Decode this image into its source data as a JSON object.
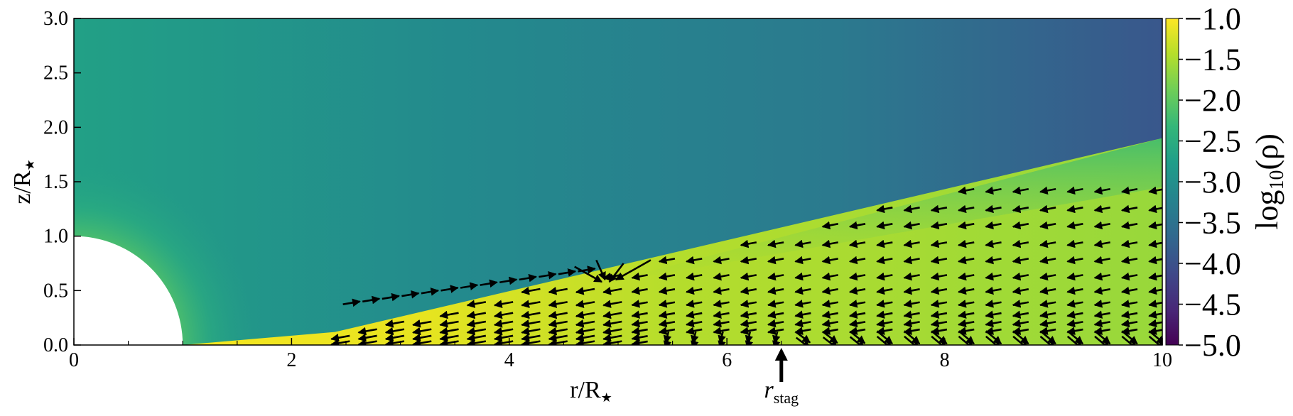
{
  "chart_data": {
    "type": "heatmap",
    "title": "",
    "xlabel": "r/R",
    "xlabel_sub": "★",
    "ylabel": "z/R",
    "ylabel_sub": "★",
    "xlim": [
      0,
      10
    ],
    "ylim": [
      0,
      3.0
    ],
    "x_ticks": [
      0,
      2,
      4,
      6,
      8,
      10
    ],
    "x_tick_labels": [
      "0",
      "2",
      "4",
      "6",
      "8",
      "10"
    ],
    "y_ticks": [
      0,
      0.5,
      1.0,
      1.5,
      2.0,
      2.5,
      3.0
    ],
    "y_tick_labels": [
      "0.0",
      "0.5",
      "1.0",
      "1.5",
      "2.0",
      "2.5",
      "3.0"
    ],
    "colorbar": {
      "label": "log",
      "label_sub": "10",
      "label_tail": "(ρ)",
      "range": [
        -5.0,
        -1.0
      ],
      "ticks": [
        -1.0,
        -1.5,
        -2.0,
        -2.5,
        -3.0,
        -3.5,
        -4.0,
        -4.5,
        -5.0
      ],
      "tick_labels": [
        "−1.0",
        "−1.5",
        "−2.0",
        "−2.5",
        "−3.0",
        "−3.5",
        "−4.0",
        "−4.5",
        "−5.0"
      ],
      "colormap": "viridis",
      "colormap_stops": [
        "#440154",
        "#482878",
        "#3e4989",
        "#31688e",
        "#26828e",
        "#1f9e89",
        "#35b779",
        "#6ece58",
        "#b5de2b",
        "#fde725"
      ]
    },
    "field_description_values": {
      "star_radius": 1.0,
      "atmosphere_log_rho_near_star": -2.6,
      "atmosphere_log_rho_far": -3.8,
      "disk_log_rho_inner": -1.0,
      "disk_log_rho_outer": -1.9
    },
    "annotation": {
      "label": "r",
      "label_sub": "stag",
      "x": 6.5
    },
    "vector_field": {
      "description": "black velocity arrows inside the disk wedge",
      "x_range": [
        2.4,
        10
      ],
      "z_range": [
        0,
        1.4
      ]
    }
  }
}
